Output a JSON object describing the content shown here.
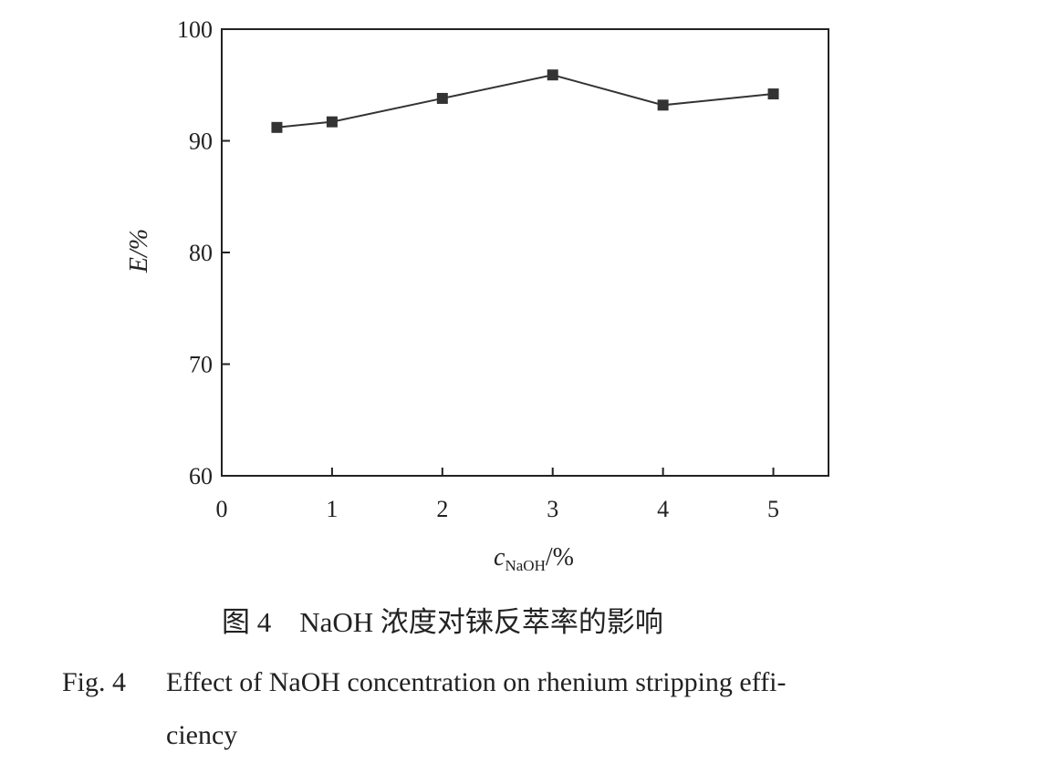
{
  "colors": {
    "ink": "#222222",
    "marker": "#333333",
    "background": "#ffffff"
  },
  "chart_data": {
    "type": "line",
    "x": [
      0.5,
      1,
      2,
      3,
      4,
      5
    ],
    "series": [
      {
        "values": [
          91.2,
          91.7,
          93.8,
          95.9,
          93.2,
          94.2
        ],
        "marker": "square"
      }
    ],
    "xlabel": {
      "main": "c",
      "sub": "NaOH",
      "unit": "/%"
    },
    "ylabel": "E/%",
    "xlim": [
      0,
      5.5
    ],
    "ylim": [
      60,
      100
    ],
    "xticks": [
      0,
      1,
      2,
      3,
      4,
      5
    ],
    "yticks": [
      60,
      70,
      80,
      90,
      100
    ],
    "grid": false
  },
  "caption": {
    "cn": "图 4　NaOH 浓度对铼反萃率的影响",
    "en_label": "Fig. 4",
    "en_line1": "Effect of NaOH concentration on rhenium stripping effi-",
    "en_line2": "ciency"
  }
}
